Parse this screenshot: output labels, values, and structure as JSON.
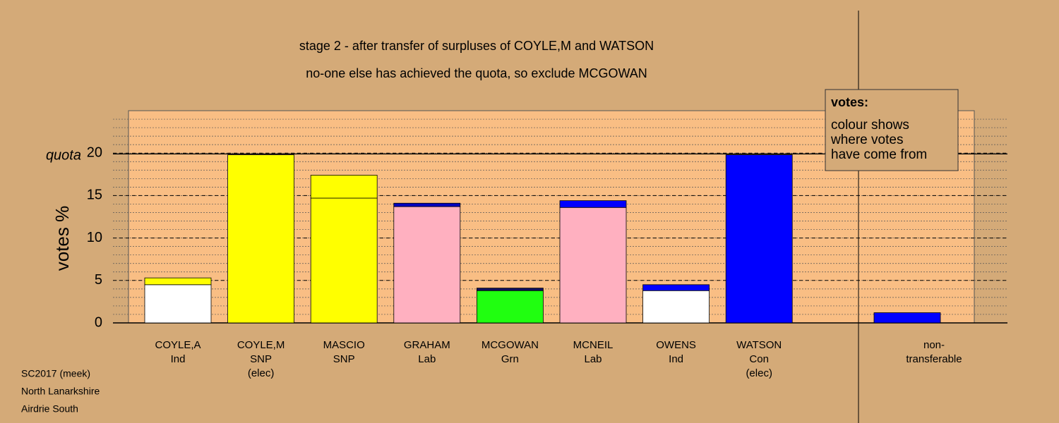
{
  "chart_data": {
    "type": "stacked-bar",
    "title": "stage 2 - after transfer of surpluses of COYLE,M and WATSON",
    "subtitle": "no-one else has achieved the quota, so exclude MCGOWAN",
    "y_label": "votes %",
    "quota_label": "quota",
    "quota": 19.9,
    "ylim": [
      0,
      25
    ],
    "yticks": [
      0,
      5,
      10,
      15,
      20
    ],
    "minor_grid_step": 1,
    "legend": {
      "title": "votes:",
      "lines": [
        "colour shows",
        "where votes",
        "have come from"
      ]
    },
    "footer": [
      "SC2017 (meek)",
      "North Lanarkshire",
      "Airdrie South"
    ],
    "bars": [
      {
        "label": [
          "COYLE,A",
          "Ind"
        ],
        "segments": [
          {
            "value": 4.5,
            "color": "#ffffff"
          },
          {
            "value": 0.8,
            "color": "#ffff00"
          }
        ]
      },
      {
        "label": [
          "COYLE,M",
          "SNP",
          "(elec)"
        ],
        "segments": [
          {
            "value": 19.8,
            "color": "#ffff00"
          }
        ]
      },
      {
        "label": [
          "MASCIO",
          "SNP"
        ],
        "segments": [
          {
            "value": 14.7,
            "color": "#ffff00"
          },
          {
            "value": 2.7,
            "color": "#ffff00"
          }
        ]
      },
      {
        "label": [
          "GRAHAM",
          "Lab"
        ],
        "segments": [
          {
            "value": 13.7,
            "color": "#ffb0c0"
          },
          {
            "value": 0.4,
            "color": "#0000c0"
          }
        ]
      },
      {
        "label": [
          "MCGOWAN",
          "Grn"
        ],
        "segments": [
          {
            "value": 3.8,
            "color": "#20ff10"
          },
          {
            "value": 0.3,
            "color": "#101060"
          }
        ]
      },
      {
        "label": [
          "MCNEIL",
          "Lab"
        ],
        "segments": [
          {
            "value": 13.6,
            "color": "#ffb0c0"
          },
          {
            "value": 0.8,
            "color": "#0000ff"
          }
        ]
      },
      {
        "label": [
          "OWENS",
          "Ind"
        ],
        "segments": [
          {
            "value": 3.8,
            "color": "#ffffff"
          },
          {
            "value": 0.7,
            "color": "#0000ff"
          }
        ]
      },
      {
        "label": [
          "WATSON",
          "Con",
          "(elec)"
        ],
        "segments": [
          {
            "value": 19.8,
            "color": "#0000ff"
          }
        ]
      },
      {
        "label": [
          "non-",
          "transferable"
        ],
        "segments": [
          {
            "value": 1.2,
            "color": "#0000ff"
          }
        ]
      }
    ]
  }
}
